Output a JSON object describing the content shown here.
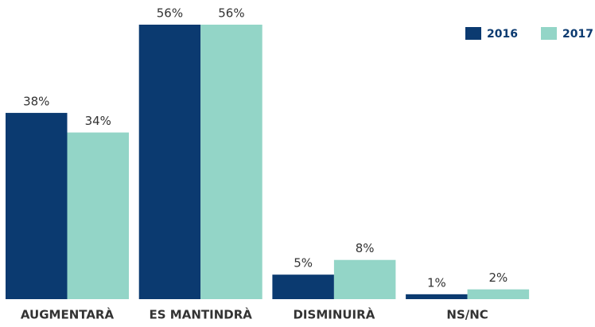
{
  "chart_data": {
    "type": "bar",
    "categories": [
      "AUGMENTARÀ",
      "ES MANTINDRÀ",
      "DISMINUIRÀ",
      "NS/NC"
    ],
    "series": [
      {
        "name": "2016",
        "color": "#0b3a70",
        "values": [
          38,
          56,
          5,
          1
        ],
        "value_labels": [
          "38%",
          "56%",
          "5%",
          "1%"
        ]
      },
      {
        "name": "2017",
        "color": "#93d5c7",
        "values": [
          34,
          56,
          8,
          2
        ],
        "value_labels": [
          "34%",
          "56%",
          "8%",
          "2%"
        ]
      }
    ],
    "legend": "top-right"
  }
}
